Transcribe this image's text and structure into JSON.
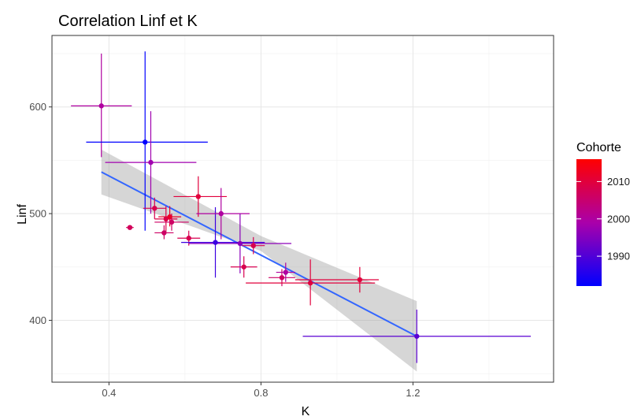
{
  "chart_data": {
    "type": "scatter",
    "title": "Correlation Linf et K",
    "xlabel": "K",
    "ylabel": "Linf",
    "xlim": [
      0.25,
      1.57
    ],
    "ylim": [
      342,
      667
    ],
    "x_ticks": [
      0.4,
      0.8,
      1.2
    ],
    "x_tick_labels": [
      "0.4",
      "0.8",
      "1.2"
    ],
    "y_ticks": [
      400,
      500,
      600
    ],
    "y_tick_labels": [
      "400",
      "500",
      "600"
    ],
    "grid": true,
    "legend": {
      "title": "Cohorte",
      "position": "right",
      "range": [
        1982,
        2016
      ],
      "ticks": [
        1990,
        2000,
        2010
      ],
      "tick_labels": [
        "1990",
        "2000",
        "2010"
      ],
      "color_low": "#0000FF",
      "color_high": "#FF0000"
    },
    "points": [
      {
        "x": 0.38,
        "y": 601,
        "cohort": 2000,
        "x_err": [
          0.3,
          0.46
        ],
        "y_err": [
          553,
          650
        ]
      },
      {
        "x": 0.495,
        "y": 567,
        "cohort": 1982,
        "x_err": [
          0.34,
          0.66
        ],
        "y_err": [
          484,
          652
        ]
      },
      {
        "x": 0.51,
        "y": 548,
        "cohort": 1998,
        "x_err": [
          0.39,
          0.63
        ],
        "y_err": [
          500,
          596
        ]
      },
      {
        "x": 0.455,
        "y": 487,
        "cohort": 2007,
        "x_err": [
          0.445,
          0.465
        ],
        "y_err": [
          485,
          489
        ]
      },
      {
        "x": 0.52,
        "y": 505,
        "cohort": 2008,
        "x_err": [
          0.49,
          0.55
        ],
        "y_err": [
          495,
          515
        ]
      },
      {
        "x": 0.545,
        "y": 482,
        "cohort": 2006,
        "x_err": [
          0.52,
          0.57
        ],
        "y_err": [
          476,
          489
        ]
      },
      {
        "x": 0.55,
        "y": 495,
        "cohort": 2009,
        "x_err": [
          0.52,
          0.58
        ],
        "y_err": [
          483,
          507
        ]
      },
      {
        "x": 0.56,
        "y": 497,
        "cohort": 2012,
        "x_err": [
          0.53,
          0.59
        ],
        "y_err": [
          488,
          507
        ]
      },
      {
        "x": 0.565,
        "y": 492,
        "cohort": 2006,
        "x_err": [
          0.52,
          0.61
        ],
        "y_err": [
          484,
          500
        ]
      },
      {
        "x": 0.61,
        "y": 477,
        "cohort": 2008,
        "x_err": [
          0.58,
          0.64
        ],
        "y_err": [
          470,
          484
        ]
      },
      {
        "x": 0.635,
        "y": 516,
        "cohort": 2010,
        "x_err": [
          0.57,
          0.71
        ],
        "y_err": [
          497,
          535
        ]
      },
      {
        "x": 0.68,
        "y": 473,
        "cohort": 1988,
        "x_err": [
          0.59,
          0.81
        ],
        "y_err": [
          440,
          506
        ]
      },
      {
        "x": 0.695,
        "y": 500,
        "cohort": 2000,
        "x_err": [
          0.63,
          0.77
        ],
        "y_err": [
          476,
          524
        ]
      },
      {
        "x": 0.745,
        "y": 472,
        "cohort": 1996,
        "x_err": [
          0.61,
          0.88
        ],
        "y_err": [
          444,
          500
        ]
      },
      {
        "x": 0.755,
        "y": 450,
        "cohort": 2008,
        "x_err": [
          0.72,
          0.79
        ],
        "y_err": [
          440,
          460
        ]
      },
      {
        "x": 0.78,
        "y": 470,
        "cohort": 2008,
        "x_err": [
          0.75,
          0.81
        ],
        "y_err": [
          462,
          478
        ]
      },
      {
        "x": 0.855,
        "y": 440,
        "cohort": 2006,
        "x_err": [
          0.82,
          0.89
        ],
        "y_err": [
          432,
          448
        ]
      },
      {
        "x": 0.865,
        "y": 445,
        "cohort": 2000,
        "x_err": [
          0.84,
          0.89
        ],
        "y_err": [
          436,
          454
        ]
      },
      {
        "x": 0.93,
        "y": 435,
        "cohort": 2010,
        "x_err": [
          0.76,
          1.1
        ],
        "y_err": [
          414,
          457
        ]
      },
      {
        "x": 1.06,
        "y": 438,
        "cohort": 2010,
        "x_err": [
          0.89,
          1.11
        ],
        "y_err": [
          426,
          450
        ]
      },
      {
        "x": 1.21,
        "y": 385,
        "cohort": 1991,
        "x_err": [
          0.91,
          1.51
        ],
        "y_err": [
          360,
          410
        ]
      }
    ],
    "trend": {
      "line": [
        [
          0.38,
          539
        ],
        [
          1.21,
          385
        ]
      ],
      "ci_upper": [
        [
          0.38,
          560
        ],
        [
          0.8,
          479
        ],
        [
          1.21,
          418
        ]
      ],
      "ci_lower": [
        [
          0.38,
          518
        ],
        [
          0.8,
          465
        ],
        [
          1.21,
          352
        ]
      ],
      "line_color": "#3366FF",
      "ci_color": "#999999"
    }
  }
}
